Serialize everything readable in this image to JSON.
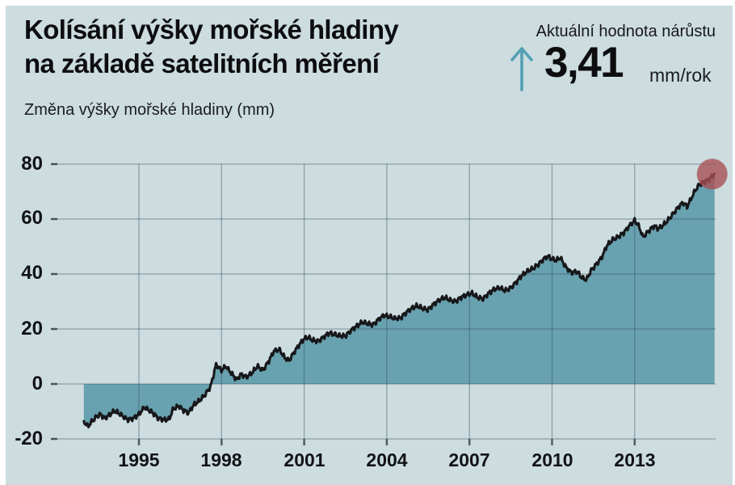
{
  "header": {
    "title_line1": "Kolísání výšky mořské hladiny",
    "title_line2": "na základě satelitních měření",
    "subtitle": "Změna výšky mořské hladiny (mm)",
    "rate_label": "Aktuální hodnota nárůstu",
    "rate_value": "3,41",
    "rate_unit": "mm/rok"
  },
  "colors": {
    "background": "#ccdcdf",
    "area_fill": "#68a1af",
    "line": "#17171a",
    "gridline": "rgba(52,76,88,0.42)",
    "tick": "rgba(35,52,60,0.75)",
    "marker_red": "#a84e52",
    "accent_teal": "#539fb4"
  },
  "chart_data": {
    "type": "area",
    "title": "Kolísání výšky mořské hladiny na základě satelitních měření",
    "ylabel": "Změna výšky mořské hladiny (mm)",
    "xlabel": "",
    "unit": "mm",
    "current_rate_mm_per_year": 3.41,
    "ylim": [
      -20,
      80
    ],
    "xlim": [
      1991.8,
      2016
    ],
    "grid": true,
    "legend": false,
    "yticks": [
      "80",
      "60",
      "40",
      "20",
      "0",
      "-20"
    ],
    "ytick_values": [
      80,
      60,
      40,
      20,
      0,
      -20
    ],
    "xticks": [
      "1995",
      "1998",
      "2001",
      "2004",
      "2007",
      "2010",
      "2013"
    ],
    "xtick_values": [
      1995,
      1998,
      2001,
      2004,
      2007,
      2010,
      2013
    ],
    "endpoint": {
      "year": 2015.9,
      "value_mm": 76.5,
      "marker": "red-circle"
    },
    "series": [
      {
        "name": "Změna výšky mořské hladiny (mm)",
        "points": [
          [
            1993.0,
            -13.5
          ],
          [
            1993.15,
            -15.5
          ],
          [
            1993.3,
            -13.5
          ],
          [
            1993.45,
            -12
          ],
          [
            1993.6,
            -11
          ],
          [
            1993.75,
            -12.5
          ],
          [
            1993.9,
            -11.5
          ],
          [
            1994.1,
            -9.8
          ],
          [
            1994.25,
            -10.5
          ],
          [
            1994.45,
            -12
          ],
          [
            1994.6,
            -13
          ],
          [
            1994.8,
            -12.5
          ],
          [
            1995.0,
            -11
          ],
          [
            1995.2,
            -8.5
          ],
          [
            1995.35,
            -9.5
          ],
          [
            1995.5,
            -10.5
          ],
          [
            1995.7,
            -12.5
          ],
          [
            1995.9,
            -13
          ],
          [
            1996.1,
            -12.8
          ],
          [
            1996.25,
            -9
          ],
          [
            1996.45,
            -8
          ],
          [
            1996.6,
            -9.5
          ],
          [
            1996.8,
            -10.5
          ],
          [
            1997.0,
            -7.5
          ],
          [
            1997.2,
            -6
          ],
          [
            1997.4,
            -4
          ],
          [
            1997.6,
            -1
          ],
          [
            1997.8,
            7
          ],
          [
            1998.0,
            5
          ],
          [
            1998.15,
            6.5
          ],
          [
            1998.35,
            4
          ],
          [
            1998.55,
            1.5
          ],
          [
            1998.7,
            3.5
          ],
          [
            1998.9,
            2.5
          ],
          [
            1999.1,
            4
          ],
          [
            1999.3,
            6.5
          ],
          [
            1999.5,
            5
          ],
          [
            1999.7,
            8
          ],
          [
            1999.9,
            12
          ],
          [
            2000.1,
            12.5
          ],
          [
            2000.3,
            9.5
          ],
          [
            2000.45,
            8.5
          ],
          [
            2000.6,
            11
          ],
          [
            2000.8,
            14
          ],
          [
            2001.0,
            16.5
          ],
          [
            2001.15,
            17
          ],
          [
            2001.3,
            16
          ],
          [
            2001.5,
            15.5
          ],
          [
            2001.7,
            17
          ],
          [
            2001.9,
            18.5
          ],
          [
            2002.1,
            18
          ],
          [
            2002.3,
            17.5
          ],
          [
            2002.5,
            17.5
          ],
          [
            2002.7,
            19.5
          ],
          [
            2002.9,
            21
          ],
          [
            2003.1,
            22.5
          ],
          [
            2003.3,
            22
          ],
          [
            2003.5,
            21.5
          ],
          [
            2003.7,
            23.5
          ],
          [
            2003.9,
            25
          ],
          [
            2004.1,
            24.5
          ],
          [
            2004.3,
            23.8
          ],
          [
            2004.5,
            24
          ],
          [
            2004.7,
            26
          ],
          [
            2004.9,
            27.5
          ],
          [
            2005.1,
            28.5
          ],
          [
            2005.3,
            27.5
          ],
          [
            2005.5,
            27
          ],
          [
            2005.7,
            29
          ],
          [
            2005.9,
            30.5
          ],
          [
            2006.1,
            31.5
          ],
          [
            2006.3,
            30.5
          ],
          [
            2006.5,
            30
          ],
          [
            2006.7,
            31.5
          ],
          [
            2006.9,
            32.5
          ],
          [
            2007.1,
            33
          ],
          [
            2007.3,
            31.5
          ],
          [
            2007.5,
            31
          ],
          [
            2007.7,
            33
          ],
          [
            2007.9,
            34.5
          ],
          [
            2008.1,
            35
          ],
          [
            2008.3,
            34
          ],
          [
            2008.5,
            35
          ],
          [
            2008.7,
            37
          ],
          [
            2008.9,
            39.5
          ],
          [
            2009.1,
            41
          ],
          [
            2009.3,
            42
          ],
          [
            2009.5,
            43.5
          ],
          [
            2009.7,
            45.5
          ],
          [
            2009.85,
            46.5
          ],
          [
            2010.0,
            45.5
          ],
          [
            2010.15,
            45
          ],
          [
            2010.3,
            46
          ],
          [
            2010.5,
            42.5
          ],
          [
            2010.7,
            40.5
          ],
          [
            2010.9,
            41
          ],
          [
            2011.1,
            38.5
          ],
          [
            2011.25,
            38
          ],
          [
            2011.4,
            41
          ],
          [
            2011.6,
            43.5
          ],
          [
            2011.8,
            46
          ],
          [
            2012.0,
            50.5
          ],
          [
            2012.2,
            52.5
          ],
          [
            2012.4,
            53.5
          ],
          [
            2012.6,
            55
          ],
          [
            2012.8,
            57.5
          ],
          [
            2013.0,
            59.5
          ],
          [
            2013.15,
            57.5
          ],
          [
            2013.3,
            53.5
          ],
          [
            2013.5,
            55.5
          ],
          [
            2013.7,
            57.5
          ],
          [
            2013.85,
            56.5
          ],
          [
            2014.0,
            57.5
          ],
          [
            2014.2,
            59.5
          ],
          [
            2014.4,
            62
          ],
          [
            2014.6,
            64.5
          ],
          [
            2014.75,
            66
          ],
          [
            2014.9,
            64.5
          ],
          [
            2015.05,
            67.5
          ],
          [
            2015.2,
            70.5
          ],
          [
            2015.35,
            72.5
          ],
          [
            2015.5,
            73.5
          ],
          [
            2015.65,
            74
          ],
          [
            2015.8,
            75.5
          ],
          [
            2015.9,
            76.5
          ]
        ]
      }
    ]
  }
}
